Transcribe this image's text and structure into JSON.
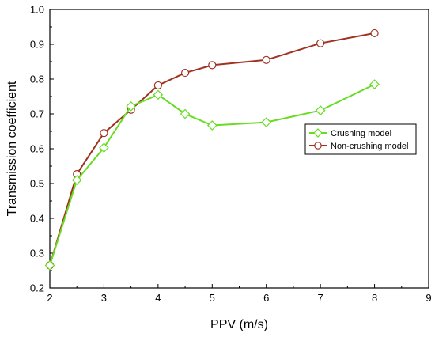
{
  "chart_data": {
    "type": "line",
    "title": "",
    "xlabel": "PPV (m/s)",
    "ylabel": "Transmission coefficient",
    "xlim": [
      2,
      9
    ],
    "ylim": [
      0.2,
      1.0
    ],
    "xticks": [
      "2",
      "3",
      "4",
      "5",
      "6",
      "7",
      "8",
      "9"
    ],
    "yticks": [
      "0.2",
      "0.3",
      "0.4",
      "0.5",
      "0.6",
      "0.7",
      "0.8",
      "0.9",
      "1.0"
    ],
    "grid": false,
    "legend_position": "right",
    "series": [
      {
        "name": "Crushing model",
        "color": "#66dd22",
        "marker": "diamond",
        "x": [
          2,
          2.5,
          3,
          3.5,
          4,
          4.5,
          5,
          6,
          7,
          8
        ],
        "y": [
          0.265,
          0.51,
          0.603,
          0.722,
          0.755,
          0.7,
          0.667,
          0.676,
          0.71,
          0.785
        ]
      },
      {
        "name": "Non-crushing model",
        "color": "#a03222",
        "marker": "circle",
        "x": [
          2,
          2.5,
          3,
          3.5,
          4,
          4.5,
          5,
          6,
          7,
          8
        ],
        "y": [
          0.265,
          0.527,
          0.645,
          0.712,
          0.782,
          0.818,
          0.84,
          0.855,
          0.903,
          0.932
        ]
      }
    ]
  }
}
